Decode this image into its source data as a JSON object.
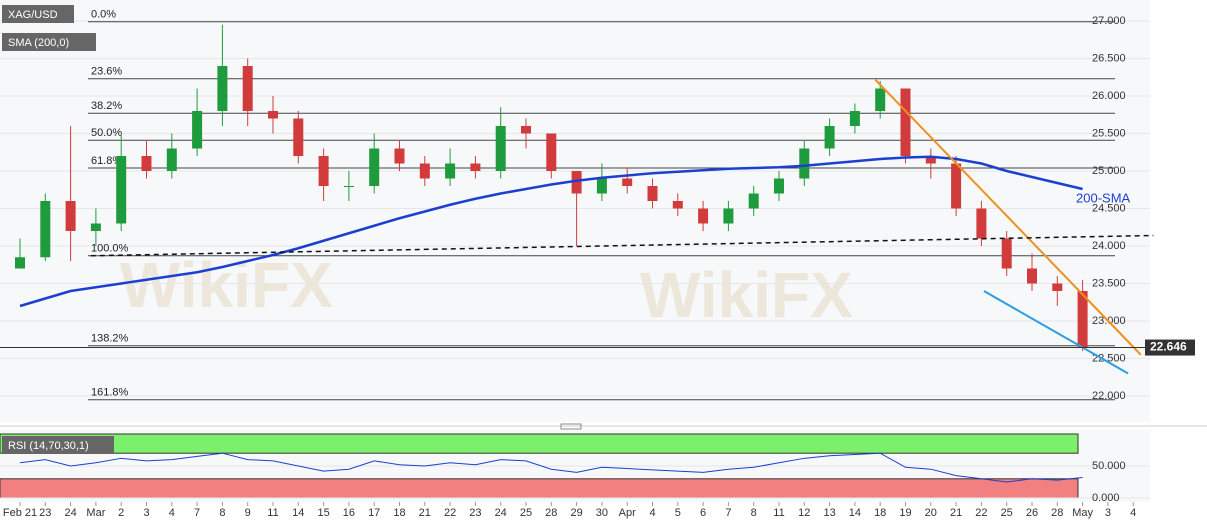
{
  "chart_data": {
    "type": "candlestick",
    "categories": [
      "Feb 21",
      "23",
      "24",
      "Mar",
      "2",
      "3",
      "4",
      "7",
      "8",
      "9",
      "11",
      "14",
      "15",
      "16",
      "17",
      "18",
      "21",
      "22",
      "23",
      "24",
      "25",
      "28",
      "29",
      "30",
      "Apr",
      "4",
      "5",
      "6",
      "7",
      "8",
      "11",
      "12",
      "13",
      "14",
      "18",
      "19",
      "20",
      "21",
      "22",
      "25",
      "26",
      "28",
      "May",
      "3",
      "4"
    ],
    "candles": {
      "name": "XAG/USD",
      "up_color": "#1e9b3c",
      "down_color": "#d23b3b",
      "open": [
        23.7,
        23.85,
        24.6,
        24.2,
        24.3,
        25.2,
        25.0,
        25.3,
        25.8,
        26.4,
        25.8,
        25.7,
        25.2,
        24.8,
        24.8,
        25.3,
        25.1,
        24.9,
        25.1,
        25.0,
        25.6,
        25.5,
        25.0,
        24.7,
        24.9,
        24.8,
        24.6,
        24.5,
        24.3,
        24.5,
        24.7,
        24.9,
        25.3,
        25.6,
        25.8,
        26.1,
        25.2,
        25.1,
        24.5,
        24.1,
        23.7,
        23.5,
        23.4,
        null,
        null
      ],
      "high": [
        24.1,
        24.7,
        25.6,
        24.5,
        25.5,
        25.4,
        25.5,
        26.1,
        26.95,
        26.5,
        26.0,
        25.8,
        25.3,
        25.0,
        25.5,
        25.4,
        25.2,
        25.3,
        25.2,
        25.85,
        25.7,
        25.5,
        24.9,
        25.1,
        25.05,
        24.9,
        24.7,
        24.6,
        24.6,
        24.8,
        25.0,
        25.4,
        25.7,
        25.9,
        26.2,
        26.1,
        25.3,
        25.2,
        24.6,
        24.2,
        23.9,
        23.6,
        23.55,
        null,
        null
      ],
      "low": [
        23.7,
        23.8,
        23.8,
        24.0,
        24.2,
        24.9,
        24.9,
        25.2,
        25.6,
        25.6,
        25.5,
        25.1,
        24.6,
        24.6,
        24.7,
        25.0,
        24.8,
        24.8,
        24.9,
        24.9,
        25.3,
        24.9,
        24.0,
        24.6,
        24.7,
        24.5,
        24.4,
        24.2,
        24.2,
        24.4,
        24.6,
        24.8,
        25.2,
        25.5,
        25.7,
        25.1,
        24.9,
        24.4,
        24.0,
        23.6,
        23.4,
        23.2,
        22.6,
        null,
        null
      ],
      "close": [
        23.85,
        24.6,
        24.2,
        24.3,
        25.2,
        25.0,
        25.3,
        25.8,
        26.4,
        25.8,
        25.7,
        25.2,
        24.8,
        24.8,
        25.3,
        25.1,
        24.9,
        25.1,
        25.0,
        25.6,
        25.5,
        25.0,
        24.7,
        24.9,
        24.8,
        24.6,
        24.5,
        24.3,
        24.5,
        24.7,
        24.9,
        25.3,
        25.6,
        25.8,
        26.1,
        25.2,
        25.1,
        24.5,
        24.1,
        23.7,
        23.5,
        23.4,
        22.65,
        null,
        null
      ]
    },
    "sma": {
      "name": "SMA (200,0)",
      "label": "200-SMA",
      "color": "#1c3fd1",
      "values": [
        23.2,
        23.3,
        23.4,
        23.45,
        23.5,
        23.55,
        23.6,
        23.65,
        23.72,
        23.8,
        23.88,
        23.97,
        24.07,
        24.17,
        24.27,
        24.37,
        24.46,
        24.55,
        24.63,
        24.7,
        24.76,
        24.82,
        24.87,
        24.91,
        24.94,
        24.97,
        24.99,
        25.01,
        25.03,
        25.04,
        25.05,
        25.07,
        25.1,
        25.13,
        25.16,
        25.18,
        25.19,
        25.16,
        25.1,
        25.0,
        24.92,
        24.84,
        24.76,
        null,
        null
      ]
    },
    "ylim": [
      21.7,
      27.25
    ],
    "yticks": [
      {
        "value": 27,
        "label": "27.000"
      },
      {
        "value": 26.5,
        "label": "26.500"
      },
      {
        "value": 26,
        "label": "26.000"
      },
      {
        "value": 25.5,
        "label": "25.500"
      },
      {
        "value": 25,
        "label": "25.000"
      },
      {
        "value": 24.5,
        "label": "24.500"
      },
      {
        "value": 24,
        "label": "24.000"
      },
      {
        "value": 23.5,
        "label": "23.500"
      },
      {
        "value": 23,
        "label": "23.000"
      },
      {
        "value": 22.5,
        "label": "22.500"
      },
      {
        "value": 22,
        "label": "22.000"
      }
    ],
    "last_price": {
      "value": 22.646,
      "label": "22.646"
    },
    "fib_levels": [
      {
        "value": 26.99,
        "label": "0.0%"
      },
      {
        "value": 26.23,
        "label": "23.6%"
      },
      {
        "value": 25.77,
        "label": "38.2%"
      },
      {
        "value": 25.41,
        "label": "50.0%"
      },
      {
        "value": 25.04,
        "label": "61.8%"
      },
      {
        "value": 23.87,
        "label": "100.0%"
      },
      {
        "value": 22.67,
        "label": "138.2%"
      },
      {
        "value": 21.95,
        "label": "161.8%"
      }
    ],
    "trendlines": [
      {
        "color": "#f0901e",
        "x": [
          33.8,
          44.3
        ],
        "y": [
          26.22,
          22.55
        ]
      },
      {
        "color": "#2a9fe0",
        "x": [
          38.1,
          43.8
        ],
        "y": [
          23.4,
          22.3
        ]
      },
      {
        "color": "#111111",
        "x": [
          2.8,
          44.8
        ],
        "y": [
          23.87,
          24.14
        ],
        "dashed": true
      }
    ],
    "watermark": "WikiFX",
    "rsi": {
      "name": "RSI (14,70,30,1)",
      "color": "#1c3fd1",
      "ylim": [
        0,
        100
      ],
      "upper": 70,
      "lower": 30,
      "yticks": [
        {
          "value": 50,
          "label": "50.000"
        },
        {
          "value": 0,
          "label": "0.000"
        }
      ],
      "values": [
        55,
        60,
        50,
        55,
        62,
        58,
        60,
        65,
        70,
        60,
        58,
        50,
        42,
        45,
        58,
        52,
        50,
        55,
        52,
        60,
        58,
        45,
        40,
        48,
        46,
        44,
        42,
        40,
        45,
        48,
        55,
        62,
        66,
        68,
        70,
        48,
        45,
        35,
        30,
        25,
        30,
        28,
        32,
        null,
        null
      ]
    }
  }
}
